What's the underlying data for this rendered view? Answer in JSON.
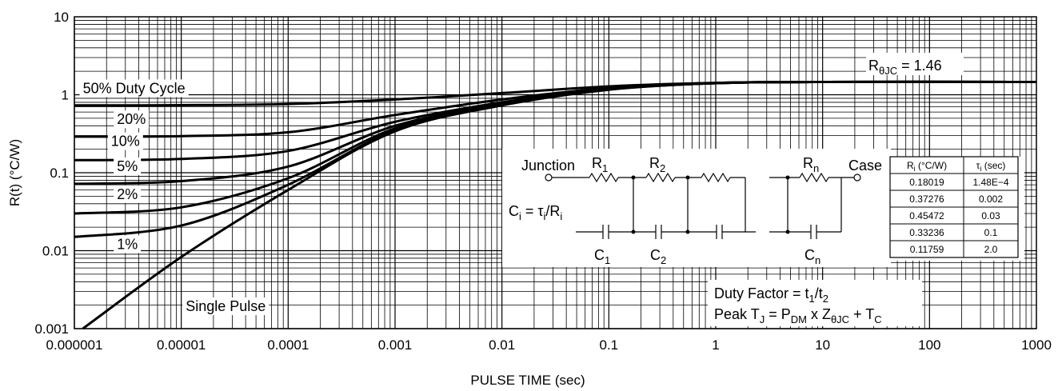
{
  "chart_data": {
    "type": "line",
    "xscale": "log",
    "yscale": "log",
    "xlim": [
      1e-06,
      1000
    ],
    "ylim": [
      0.001,
      10
    ],
    "xlabel": "PULSE TIME (sec)",
    "ylabel": "R(t) (°C/W)",
    "x_tick_labels": [
      "0.000001",
      "0.00001",
      "0.0001",
      "0.001",
      "0.01",
      "0.1",
      "1",
      "10",
      "100",
      "1000"
    ],
    "y_tick_labels": [
      "10",
      "1",
      "0.1",
      "0.01",
      "0.001"
    ],
    "grid": true,
    "series": [
      {
        "name": "50% Duty Cycle",
        "x": [
          1e-06,
          1e-05,
          0.0001,
          0.001,
          0.01,
          0.1,
          1,
          10,
          1000
        ],
        "y": [
          0.73,
          0.735,
          0.76,
          0.87,
          1.05,
          1.28,
          1.42,
          1.46,
          1.46
        ]
      },
      {
        "name": "20%",
        "x": [
          1e-06,
          1e-05,
          0.0001,
          0.001,
          0.01,
          0.1,
          1,
          10,
          1000
        ],
        "y": [
          0.29,
          0.295,
          0.33,
          0.55,
          0.87,
          1.22,
          1.42,
          1.46,
          1.46
        ]
      },
      {
        "name": "10%",
        "x": [
          1e-06,
          1e-05,
          0.0001,
          0.001,
          0.01,
          0.1,
          1,
          10,
          1000
        ],
        "y": [
          0.145,
          0.15,
          0.19,
          0.45,
          0.8,
          1.2,
          1.42,
          1.46,
          1.46
        ]
      },
      {
        "name": "5%",
        "x": [
          1e-06,
          1e-05,
          0.0001,
          0.001,
          0.01,
          0.1,
          1,
          10,
          1000
        ],
        "y": [
          0.072,
          0.078,
          0.12,
          0.4,
          0.77,
          1.18,
          1.41,
          1.46,
          1.46
        ]
      },
      {
        "name": "2%",
        "x": [
          1e-06,
          1e-05,
          0.0001,
          0.001,
          0.01,
          0.1,
          1,
          10,
          1000
        ],
        "y": [
          0.03,
          0.036,
          0.085,
          0.37,
          0.75,
          1.17,
          1.41,
          1.46,
          1.46
        ]
      },
      {
        "name": "1%",
        "x": [
          1e-06,
          1e-05,
          0.0001,
          0.001,
          0.01,
          0.1,
          1,
          10,
          1000
        ],
        "y": [
          0.015,
          0.021,
          0.07,
          0.35,
          0.74,
          1.17,
          1.41,
          1.46,
          1.46
        ]
      },
      {
        "name": "Single Pulse",
        "x": [
          1.2e-06,
          1e-05,
          0.0001,
          0.001,
          0.01,
          0.1,
          1,
          10,
          1000
        ],
        "y": [
          0.001,
          0.0083,
          0.06,
          0.34,
          0.73,
          1.16,
          1.41,
          1.46,
          1.46
        ]
      }
    ],
    "label_anchors": [
      {
        "text": "50% Duty Cycle",
        "x": 1.2e-06,
        "y": 1.05
      },
      {
        "text": "20%",
        "x": 2.5e-06,
        "y": 0.42
      },
      {
        "text": "10%",
        "x": 2.2e-06,
        "y": 0.22
      },
      {
        "text": "5%",
        "x": 2.5e-06,
        "y": 0.105
      },
      {
        "text": "2%",
        "x": 2.5e-06,
        "y": 0.046
      },
      {
        "text": "1%",
        "x": 2.5e-06,
        "y": 0.0105
      },
      {
        "text": "Single Pulse",
        "x": 1.1e-05,
        "y": 0.00168
      },
      {
        "text": "RθJC = 1.46",
        "x": 4,
        "y": 2.3
      }
    ],
    "annotations": {
      "rthjc": {
        "prefix": "R",
        "sub": "θJC",
        "suffix": " = 1.46"
      },
      "duty_factor": {
        "text": "Duty Factor = t",
        "sub1": "1",
        "mid": "/t",
        "sub2": "2"
      },
      "peak_tj": {
        "t": "Peak T",
        "sJ": "J",
        "eq": " = P",
        "sDM": "DM",
        "x": " x Z",
        "sZ": "θJC",
        "plus": " + T",
        "sC": "C"
      }
    },
    "circuit": {
      "junction": "Junction",
      "case": "Case",
      "r_labels": [
        {
          "base": "R",
          "sub": "1"
        },
        {
          "base": "R",
          "sub": "2"
        },
        {
          "base": "R",
          "sub": "n"
        }
      ],
      "c_labels": [
        {
          "base": "C",
          "sub": "1"
        },
        {
          "base": "C",
          "sub": "2"
        },
        {
          "base": "C",
          "sub": "n"
        }
      ],
      "formula": {
        "c": "C",
        "i1": "i",
        "eq": " = τ",
        "i2": "i",
        "slash": "/R",
        "i3": "i"
      }
    },
    "rc_table": {
      "header_r": {
        "base": "R",
        "sub": "i",
        "rest": " (°C/W)"
      },
      "header_tau": {
        "base": "τ",
        "sub": "i",
        "rest": " (sec)"
      },
      "rows": [
        [
          "0.18019",
          "1.48E−4"
        ],
        [
          "0.37276",
          "0.002"
        ],
        [
          "0.45472",
          "0.03"
        ],
        [
          "0.33236",
          "0.1"
        ],
        [
          "0.11759",
          "2.0"
        ]
      ]
    }
  }
}
